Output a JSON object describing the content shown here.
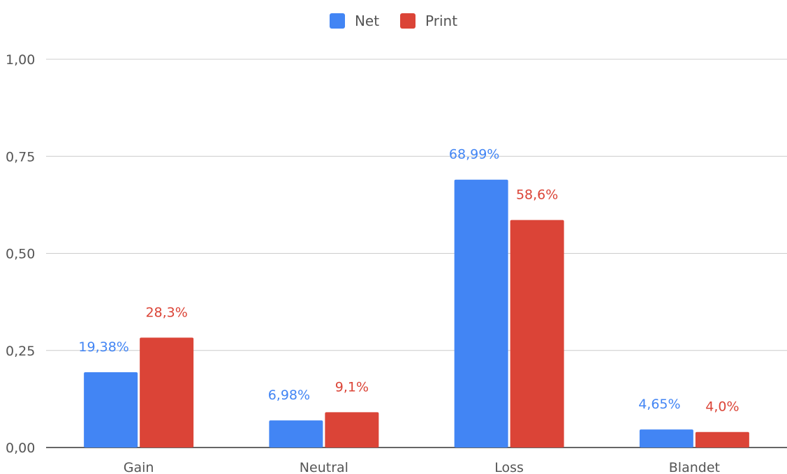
{
  "chart_data": {
    "type": "bar",
    "categories": [
      "Gain",
      "Neutral",
      "Loss",
      "Blandet"
    ],
    "series": [
      {
        "name": "Net",
        "color": "#4285f4",
        "values": [
          0.1938,
          0.0698,
          0.6899,
          0.0465
        ],
        "labels": [
          "19,38%",
          "6,98%",
          "68,99%",
          "4,65%"
        ]
      },
      {
        "name": "Print",
        "color": "#db4437",
        "values": [
          0.283,
          0.091,
          0.586,
          0.04
        ],
        "labels": [
          "28,3%",
          "9,1%",
          "58,6%",
          "4,0%"
        ]
      }
    ],
    "ylim": [
      0,
      1
    ],
    "yticks": [
      "0,00",
      "0,25",
      "0,50",
      "0,75",
      "1,00"
    ],
    "grid": true,
    "legend_position": "top-center",
    "title": "",
    "xlabel": "",
    "ylabel": ""
  }
}
